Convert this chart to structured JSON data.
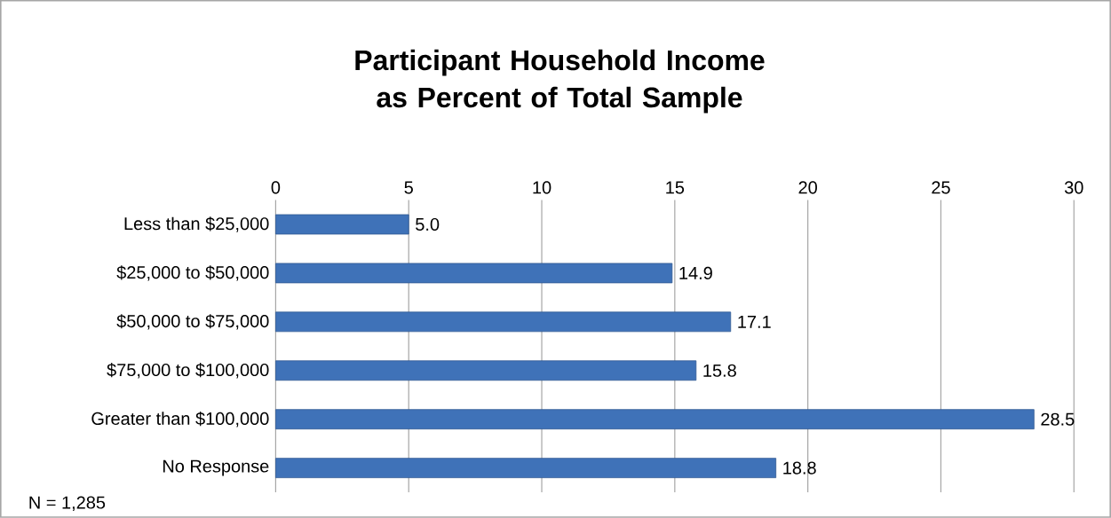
{
  "chart_data": {
    "type": "bar",
    "orientation": "horizontal",
    "title": "Participant Household Income as Percent of Total Sample",
    "categories": [
      "Less than $25,000",
      "$25,000 to $50,000",
      "$50,000 to $75,000",
      "$75,000 to $100,000",
      "Greater than $100,000",
      "No Response"
    ],
    "values": [
      5.0,
      14.9,
      17.1,
      15.8,
      28.5,
      18.8
    ],
    "color": "#3f72b8",
    "xlim": [
      0,
      30
    ],
    "xticks": [
      0,
      5,
      10,
      15,
      20,
      25,
      30
    ],
    "grid": "x",
    "value_labels": [
      "5.0",
      "14.9",
      "17.1",
      "15.8",
      "28.5",
      "18.8"
    ],
    "annotations": [
      "N = 1,285"
    ]
  }
}
